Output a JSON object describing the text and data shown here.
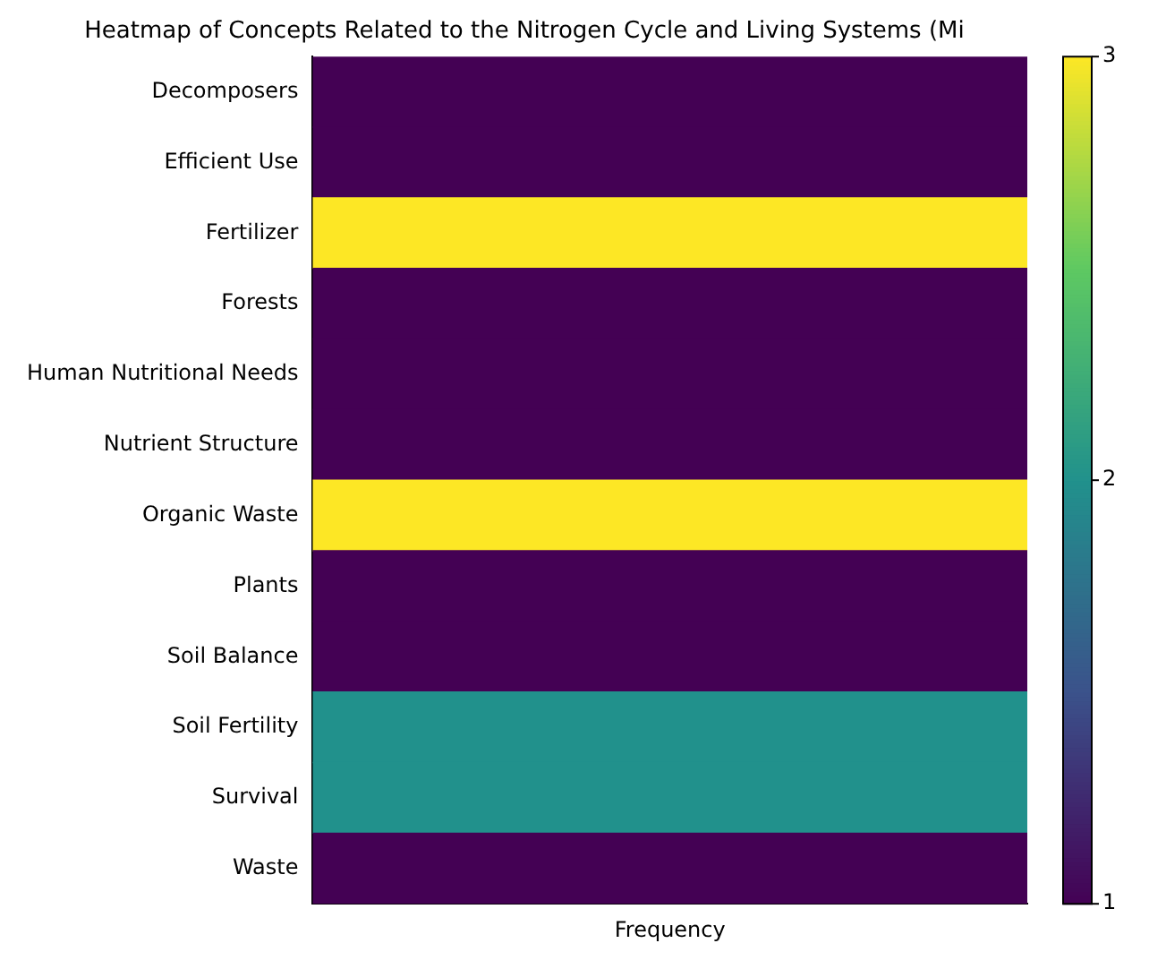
{
  "chart_data": {
    "type": "heatmap",
    "title": "Heatmap of Concepts Related to the Nitrogen Cycle and Living Systems (Mi",
    "categories": [
      "Frequency"
    ],
    "y_categories": [
      "Decomposers",
      "Efficient Use",
      "Fertilizer",
      "Forests",
      "Human Nutritional Needs",
      "Nutrient Structure",
      "Organic Waste",
      "Plants",
      "Soil Balance",
      "Soil Fertility",
      "Survival",
      "Waste"
    ],
    "cells": [
      [
        1
      ],
      [
        1
      ],
      [
        3
      ],
      [
        1
      ],
      [
        1
      ],
      [
        1
      ],
      [
        3
      ],
      [
        1
      ],
      [
        1
      ],
      [
        2
      ],
      [
        2
      ],
      [
        1
      ]
    ],
    "clim": [
      1,
      3
    ],
    "cticks": [
      1,
      2,
      3
    ]
  }
}
